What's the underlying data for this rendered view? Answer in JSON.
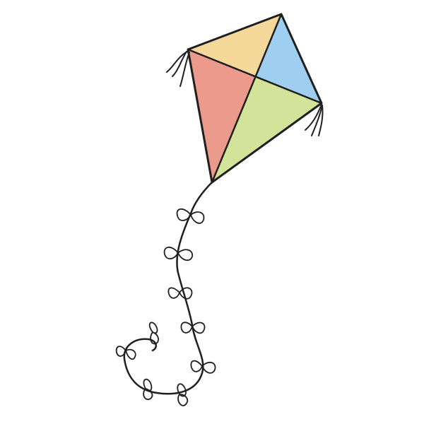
{
  "scene": {
    "background_color": "#ffffff",
    "ink_color": "#1f1f1f",
    "kite_panel_colors": {
      "top": "#f6d89a",
      "right": "#9ecff1",
      "left": "#ec9a8b",
      "bottom": "#d3e39a"
    },
    "bow_colors": {
      "yellow": "#f6dc98",
      "red": "#ee9a8e",
      "blue": "#a8d4f0",
      "green": "#d5e6a0"
    }
  }
}
